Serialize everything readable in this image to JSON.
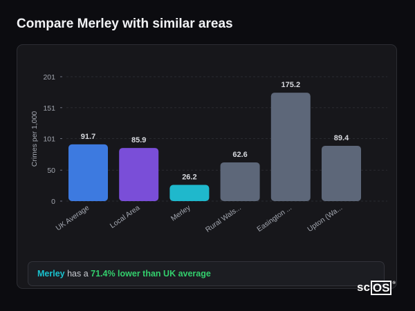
{
  "page": {
    "title": "Compare Merley with similar areas"
  },
  "chart_data": {
    "type": "bar",
    "ylabel": "Crimes per 1,000",
    "ylim": [
      0,
      201
    ],
    "yticks": [
      0,
      50,
      101,
      151,
      201
    ],
    "grid": true,
    "categories": [
      "UK Average",
      "Local Area",
      "Merley",
      "Rural Wals...",
      "Easington ...",
      "Upton (Wa..."
    ],
    "values": [
      91.7,
      85.9,
      26.2,
      62.6,
      175.2,
      89.4
    ],
    "value_labels": [
      "91.7",
      "85.9",
      "26.2",
      "62.6",
      "175.2",
      "89.4"
    ],
    "bar_colors": [
      "#3d7ae0",
      "#7a4ed8",
      "#1fb8cc",
      "#5d6779",
      "#5d6779",
      "#5d6779"
    ]
  },
  "summary": {
    "area": "Merley",
    "text_mid": " has a ",
    "stat": "71.4% lower than UK average"
  },
  "brand": {
    "prefix": "sc",
    "boxed": "OS",
    "mark": "®"
  }
}
